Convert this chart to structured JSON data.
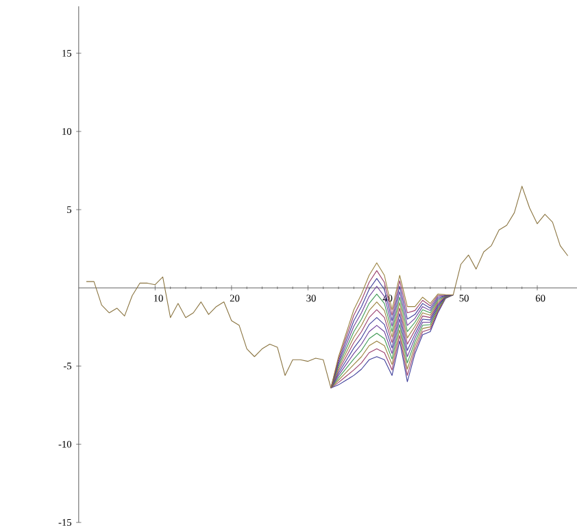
{
  "chart_data": {
    "type": "line",
    "marker": "none",
    "line_style": "solid",
    "xlim": [
      0,
      65.2
    ],
    "ylim": [
      -15,
      18
    ],
    "xticks": [
      10,
      20,
      30,
      40,
      50,
      60
    ],
    "yticks": [
      -15,
      -10,
      -5,
      5,
      10,
      15
    ],
    "x": [
      1,
      2,
      3,
      4,
      5,
      6,
      7,
      8,
      9,
      10,
      11,
      12,
      13,
      14,
      15,
      16,
      17,
      18,
      19,
      20,
      21,
      22,
      23,
      24,
      25,
      26,
      27,
      28,
      29,
      30,
      31,
      32,
      33,
      34,
      35,
      36,
      37,
      38,
      39,
      40,
      41,
      42,
      43,
      44,
      45,
      46,
      47,
      48,
      49,
      50,
      51,
      52,
      53,
      54,
      55,
      56,
      57,
      58,
      59,
      60,
      61,
      62,
      63,
      64
    ],
    "series": [
      {
        "color": "#8a7440",
        "values": [
          0.4,
          0.4,
          -1.1,
          -1.6,
          -1.3,
          -1.8,
          -0.5,
          0.3,
          0.3,
          0.2,
          0.7,
          -1.9,
          -1.0,
          -1.9,
          -1.6,
          -0.9,
          -1.7,
          -1.2,
          -0.9,
          -2.1,
          -2.4,
          -3.9,
          -4.4,
          -3.9,
          -3.6,
          -3.8,
          -5.6,
          -4.6,
          -4.6,
          -4.7,
          -4.5,
          -4.6,
          -6.4,
          null,
          null,
          null,
          null,
          null,
          null,
          null,
          null,
          null,
          null,
          null,
          null,
          null,
          null,
          null,
          -0.45,
          1.5,
          2.1,
          1.2,
          2.3,
          2.7,
          3.7,
          4.0,
          4.8,
          6.5,
          5.1,
          4.1,
          4.7,
          4.2,
          2.7,
          2.05
        ]
      },
      {
        "color": "#3d3d99",
        "x": [
          33,
          34,
          35,
          36,
          37,
          38,
          39,
          40,
          41,
          42,
          43,
          44,
          45,
          46,
          47,
          48,
          49
        ],
        "values": [
          -6.4,
          -6.2,
          -5.9,
          -5.6,
          -5.2,
          -4.6,
          -4.4,
          -4.6,
          -5.6,
          -3.4,
          -6.0,
          -4.2,
          -3.0,
          -2.8,
          -1.6,
          -0.68,
          -0.45
        ]
      },
      {
        "color": "#993d6b",
        "x": [
          33,
          34,
          35,
          36,
          37,
          38,
          39,
          40,
          41,
          42,
          43,
          44,
          45,
          46,
          47,
          48,
          49
        ],
        "values": [
          -6.4,
          -6.05,
          -5.65,
          -5.25,
          -4.8,
          -4.15,
          -3.9,
          -4.15,
          -5.25,
          -3.05,
          -5.6,
          -3.95,
          -2.8,
          -2.65,
          -1.5,
          -0.66,
          -0.45
        ]
      },
      {
        "color": "#99803d",
        "x": [
          33,
          34,
          35,
          36,
          37,
          38,
          39,
          40,
          41,
          42,
          43,
          44,
          45,
          46,
          47,
          48,
          49
        ],
        "values": [
          -6.4,
          -5.9,
          -5.4,
          -4.9,
          -4.4,
          -3.7,
          -3.4,
          -3.7,
          -4.9,
          -2.7,
          -5.2,
          -3.7,
          -2.6,
          -2.5,
          -1.4,
          -0.64,
          -0.45
        ]
      },
      {
        "color": "#3d9954",
        "x": [
          33,
          34,
          35,
          36,
          37,
          38,
          39,
          40,
          41,
          42,
          43,
          44,
          45,
          46,
          47,
          48,
          49
        ],
        "values": [
          -6.4,
          -5.75,
          -5.15,
          -4.55,
          -4.0,
          -3.25,
          -2.9,
          -3.25,
          -4.55,
          -2.35,
          -4.8,
          -3.45,
          -2.4,
          -2.35,
          -1.3,
          -0.62,
          -0.45
        ]
      },
      {
        "color": "#6b3d99",
        "x": [
          33,
          34,
          35,
          36,
          37,
          38,
          39,
          40,
          41,
          42,
          43,
          44,
          45,
          46,
          47,
          48,
          49
        ],
        "values": [
          -6.4,
          -5.6,
          -4.9,
          -4.2,
          -3.6,
          -2.8,
          -2.4,
          -2.8,
          -4.2,
          -2.0,
          -4.4,
          -3.2,
          -2.2,
          -2.2,
          -1.2,
          -0.6,
          -0.45
        ]
      },
      {
        "color": "#3d3d99",
        "x": [
          33,
          34,
          35,
          36,
          37,
          38,
          39,
          40,
          41,
          42,
          43,
          44,
          45,
          46,
          47,
          48,
          49
        ],
        "values": [
          -6.4,
          -5.45,
          -4.65,
          -3.85,
          -3.2,
          -2.35,
          -1.9,
          -2.35,
          -3.85,
          -1.65,
          -4.0,
          -2.95,
          -2.0,
          -2.05,
          -1.1,
          -0.58,
          -0.45
        ]
      },
      {
        "color": "#993d6b",
        "x": [
          33,
          34,
          35,
          36,
          37,
          38,
          39,
          40,
          41,
          42,
          43,
          44,
          45,
          46,
          47,
          48,
          49
        ],
        "values": [
          -6.4,
          -5.3,
          -4.4,
          -3.5,
          -2.8,
          -1.9,
          -1.4,
          -1.9,
          -3.5,
          -1.3,
          -3.6,
          -2.7,
          -1.8,
          -1.9,
          -1.0,
          -0.56,
          -0.45
        ]
      },
      {
        "color": "#99803d",
        "x": [
          33,
          34,
          35,
          36,
          37,
          38,
          39,
          40,
          41,
          42,
          43,
          44,
          45,
          46,
          47,
          48,
          49
        ],
        "values": [
          -6.4,
          -5.15,
          -4.15,
          -3.15,
          -2.4,
          -1.45,
          -0.9,
          -1.45,
          -3.15,
          -0.95,
          -3.2,
          -2.45,
          -1.6,
          -1.75,
          -0.9,
          -0.54,
          -0.45
        ]
      },
      {
        "color": "#3d9954",
        "x": [
          33,
          34,
          35,
          36,
          37,
          38,
          39,
          40,
          41,
          42,
          43,
          44,
          45,
          46,
          47,
          48,
          49
        ],
        "values": [
          -6.4,
          -5.0,
          -3.9,
          -2.8,
          -2.0,
          -1.0,
          -0.4,
          -1.0,
          -2.8,
          -0.6,
          -2.8,
          -2.2,
          -1.4,
          -1.6,
          -0.8,
          -0.52,
          -0.45
        ]
      },
      {
        "color": "#6b3d99",
        "x": [
          33,
          34,
          35,
          36,
          37,
          38,
          39,
          40,
          41,
          42,
          43,
          44,
          45,
          46,
          47,
          48,
          49
        ],
        "values": [
          -6.4,
          -4.85,
          -3.65,
          -2.45,
          -1.6,
          -0.55,
          0.1,
          -0.55,
          -2.45,
          -0.25,
          -2.4,
          -1.95,
          -1.2,
          -1.45,
          -0.7,
          -0.5,
          -0.45
        ]
      },
      {
        "color": "#3d3d99",
        "x": [
          33,
          34,
          35,
          36,
          37,
          38,
          39,
          40,
          41,
          42,
          43,
          44,
          45,
          46,
          47,
          48,
          49
        ],
        "values": [
          -6.4,
          -4.7,
          -3.4,
          -2.1,
          -1.2,
          -0.1,
          0.6,
          -0.1,
          -2.1,
          0.1,
          -2.0,
          -1.7,
          -1.0,
          -1.3,
          -0.6,
          -0.48,
          -0.45
        ]
      },
      {
        "color": "#993d6b",
        "x": [
          33,
          34,
          35,
          36,
          37,
          38,
          39,
          40,
          41,
          42,
          43,
          44,
          45,
          46,
          47,
          48,
          49
        ],
        "values": [
          -6.4,
          -4.55,
          -3.15,
          -1.75,
          -0.8,
          0.35,
          1.1,
          0.35,
          -1.75,
          0.45,
          -1.6,
          -1.45,
          -0.8,
          -1.15,
          -0.5,
          -0.46,
          -0.45
        ]
      },
      {
        "color": "#99803d",
        "x": [
          33,
          34,
          35,
          36,
          37,
          38,
          39,
          40,
          41,
          42,
          43,
          44,
          45,
          46,
          47,
          48,
          49
        ],
        "values": [
          -6.4,
          -4.4,
          -2.9,
          -1.4,
          -0.4,
          0.8,
          1.6,
          0.8,
          -1.4,
          0.8,
          -1.2,
          -1.2,
          -0.6,
          -1.0,
          -0.4,
          -0.44,
          -0.45
        ]
      }
    ]
  }
}
